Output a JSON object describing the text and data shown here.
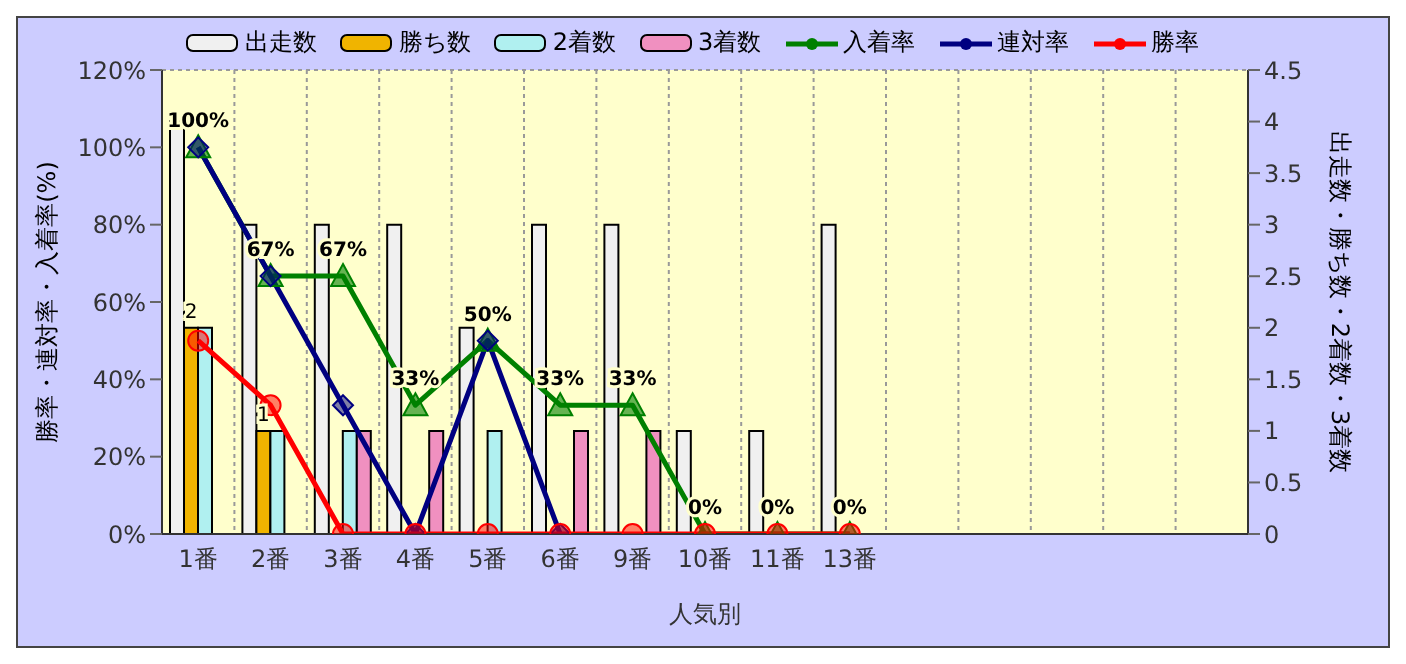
{
  "chart_data": {
    "type": "bar",
    "categories": [
      "1番",
      "2番",
      "3番",
      "4番",
      "5番",
      "6番",
      "9番",
      "10番",
      "11番",
      "13番",
      null,
      null,
      null,
      null,
      null
    ],
    "xlabel": "人気別",
    "ylabel": "勝率・連対率・入着率(%)",
    "y2label": "出走数・勝ち数・2着数・3着数",
    "series": [
      {
        "name": "出走数",
        "axis": "y2",
        "color": "#f0f0f0",
        "values": [
          4,
          3,
          3,
          3,
          2,
          3,
          3,
          1,
          1,
          3,
          null,
          null,
          null,
          null,
          null
        ]
      },
      {
        "name": "勝ち数",
        "axis": "y2",
        "color": "#f0b400",
        "values": [
          2,
          1,
          0,
          0,
          0,
          0,
          0,
          0,
          0,
          0,
          null,
          null,
          null,
          null,
          null
        ],
        "value_labels": [
          "2",
          "1",
          null,
          null,
          null,
          null,
          null,
          null,
          null,
          null,
          null,
          null,
          null,
          null,
          null
        ]
      },
      {
        "name": "2着数",
        "axis": "y2",
        "color": "#b0f0f0",
        "values": [
          2,
          1,
          1,
          0,
          1,
          0,
          0,
          0,
          0,
          0,
          null,
          null,
          null,
          null,
          null
        ]
      },
      {
        "name": "3着数",
        "axis": "y2",
        "color": "#f090c0",
        "values": [
          0,
          0,
          1,
          1,
          0,
          1,
          1,
          0,
          0,
          0,
          null,
          null,
          null,
          null,
          null
        ]
      },
      {
        "name": "入着率",
        "type": "line",
        "axis": "y",
        "marker": "triangle",
        "color": "#008000",
        "values": [
          100,
          66.7,
          66.7,
          33.3,
          50,
          33.3,
          33.3,
          0,
          0,
          0,
          null,
          null,
          null,
          null,
          null
        ],
        "value_labels": [
          "100%",
          "67%",
          "67%",
          "33%",
          "50%",
          "33%",
          "33%",
          "0%",
          "0%",
          "0%",
          null,
          null,
          null,
          null,
          null
        ]
      },
      {
        "name": "連対率",
        "type": "line",
        "axis": "y",
        "marker": "diamond",
        "color": "#000080",
        "values": [
          100,
          66.7,
          33.3,
          0,
          50,
          0,
          null,
          null,
          null,
          null,
          null,
          null,
          null,
          null,
          null
        ]
      },
      {
        "name": "勝率",
        "type": "line",
        "axis": "y",
        "marker": "circle",
        "color": "#ff0000",
        "values": [
          50,
          33.3,
          0,
          0,
          0,
          0,
          0,
          0,
          0,
          0,
          null,
          null,
          null,
          null,
          null
        ]
      }
    ],
    "ylim": [
      0,
      120
    ],
    "yticks": [
      {
        "value": 0,
        "label": "0%"
      },
      {
        "value": 20,
        "label": "20%"
      },
      {
        "value": 40,
        "label": "40%"
      },
      {
        "value": 60,
        "label": "60%"
      },
      {
        "value": 80,
        "label": "80%"
      },
      {
        "value": 100,
        "label": "100%"
      },
      {
        "value": 120,
        "label": "120%"
      }
    ],
    "y2lim": [
      0,
      4.5
    ],
    "y2ticks": [
      0,
      0.5,
      1,
      1.5,
      2,
      2.5,
      3,
      3.5,
      4,
      4.5
    ],
    "grid": true,
    "legend": "top"
  }
}
